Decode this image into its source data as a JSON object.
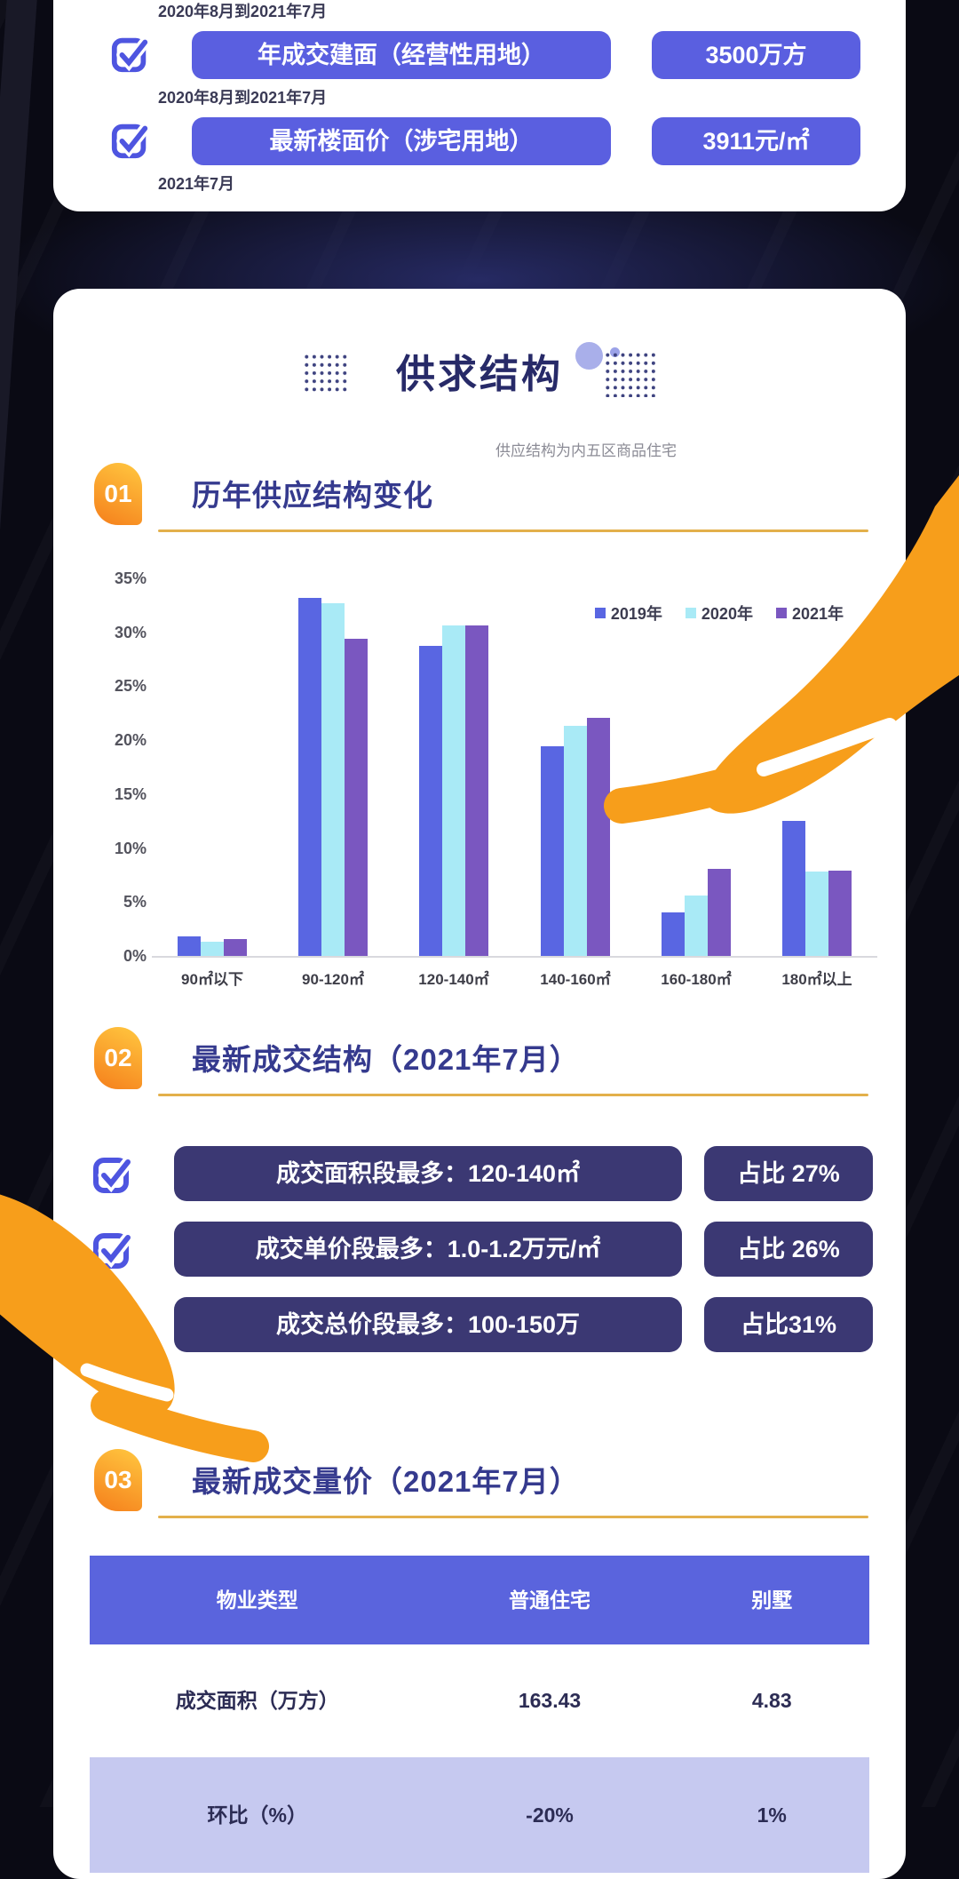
{
  "colors": {
    "page_bg": "#0a0a14",
    "card_bg": "#ffffff",
    "periwinkle_pill": "#5a5fe0",
    "dark_pill": "#3b3873",
    "checkbox_blue": "#4e55e0",
    "orange_badge_light": "#ffc43e",
    "orange_badge_dark": "#f6861f",
    "gold_underline": "#e3b04b",
    "navy_title": "#272a68",
    "section_title": "#353a8e",
    "table_header_bg": "#5a64dd",
    "table_alt_row_bg": "#c6c9f0",
    "hand_orange": "#f79e1b"
  },
  "card1": {
    "orphan_period": "2020年8月到2021年7月",
    "rows": [
      {
        "label": "年成交建面（经营性用地）",
        "value": "3500万方",
        "period": "2020年8月到2021年7月"
      },
      {
        "label": "最新楼面价（涉宅用地）",
        "value": "3911元/㎡",
        "period": "2021年7月"
      }
    ]
  },
  "card2": {
    "title": "供求结构",
    "note": "供应结构为内五区商品住宅",
    "sections": [
      {
        "num": "01",
        "title": "历年供应结构变化"
      },
      {
        "num": "02",
        "title": "最新成交结构（2021年7月）"
      },
      {
        "num": "03",
        "title": "最新成交量价（2021年7月）"
      }
    ],
    "stats": [
      {
        "label": "成交面积段最多：120-140㎡",
        "value": "占比 27%"
      },
      {
        "label": "成交单价段最多：1.0-1.2万元/㎡",
        "value": "占比 26%"
      },
      {
        "label": "成交总价段最多：100-150万",
        "value": "占比31%"
      }
    ],
    "table": {
      "headers": [
        "物业类型",
        "普通住宅",
        "别墅"
      ],
      "rows": [
        {
          "cells": [
            "成交面积（万方）",
            "163.43",
            "4.83"
          ]
        },
        {
          "cells": [
            "环比（%）",
            "-20%",
            "1%"
          ]
        }
      ]
    }
  },
  "chart_data": {
    "type": "bar",
    "title": "历年供应结构变化",
    "categories": [
      "90㎡以下",
      "90-120㎡",
      "120-140㎡",
      "140-160㎡",
      "160-180㎡",
      "180㎡以上"
    ],
    "series": [
      {
        "name": "2019年",
        "color": "#5966e2",
        "values": [
          1.8,
          33.2,
          28.7,
          19.4,
          4.0,
          12.5
        ]
      },
      {
        "name": "2020年",
        "color": "#a9eaf6",
        "values": [
          1.3,
          32.7,
          30.6,
          21.3,
          5.6,
          7.8
        ]
      },
      {
        "name": "2021年",
        "color": "#7a57c0",
        "values": [
          1.6,
          29.4,
          30.6,
          22.1,
          8.1,
          7.9
        ]
      }
    ],
    "xlabel": "",
    "ylabel": "",
    "ylim": [
      0,
      35
    ],
    "yticks": [
      0,
      5,
      10,
      15,
      20,
      25,
      30,
      35
    ],
    "ytick_suffix": "%",
    "grid": false,
    "legend_position": "top-right"
  }
}
